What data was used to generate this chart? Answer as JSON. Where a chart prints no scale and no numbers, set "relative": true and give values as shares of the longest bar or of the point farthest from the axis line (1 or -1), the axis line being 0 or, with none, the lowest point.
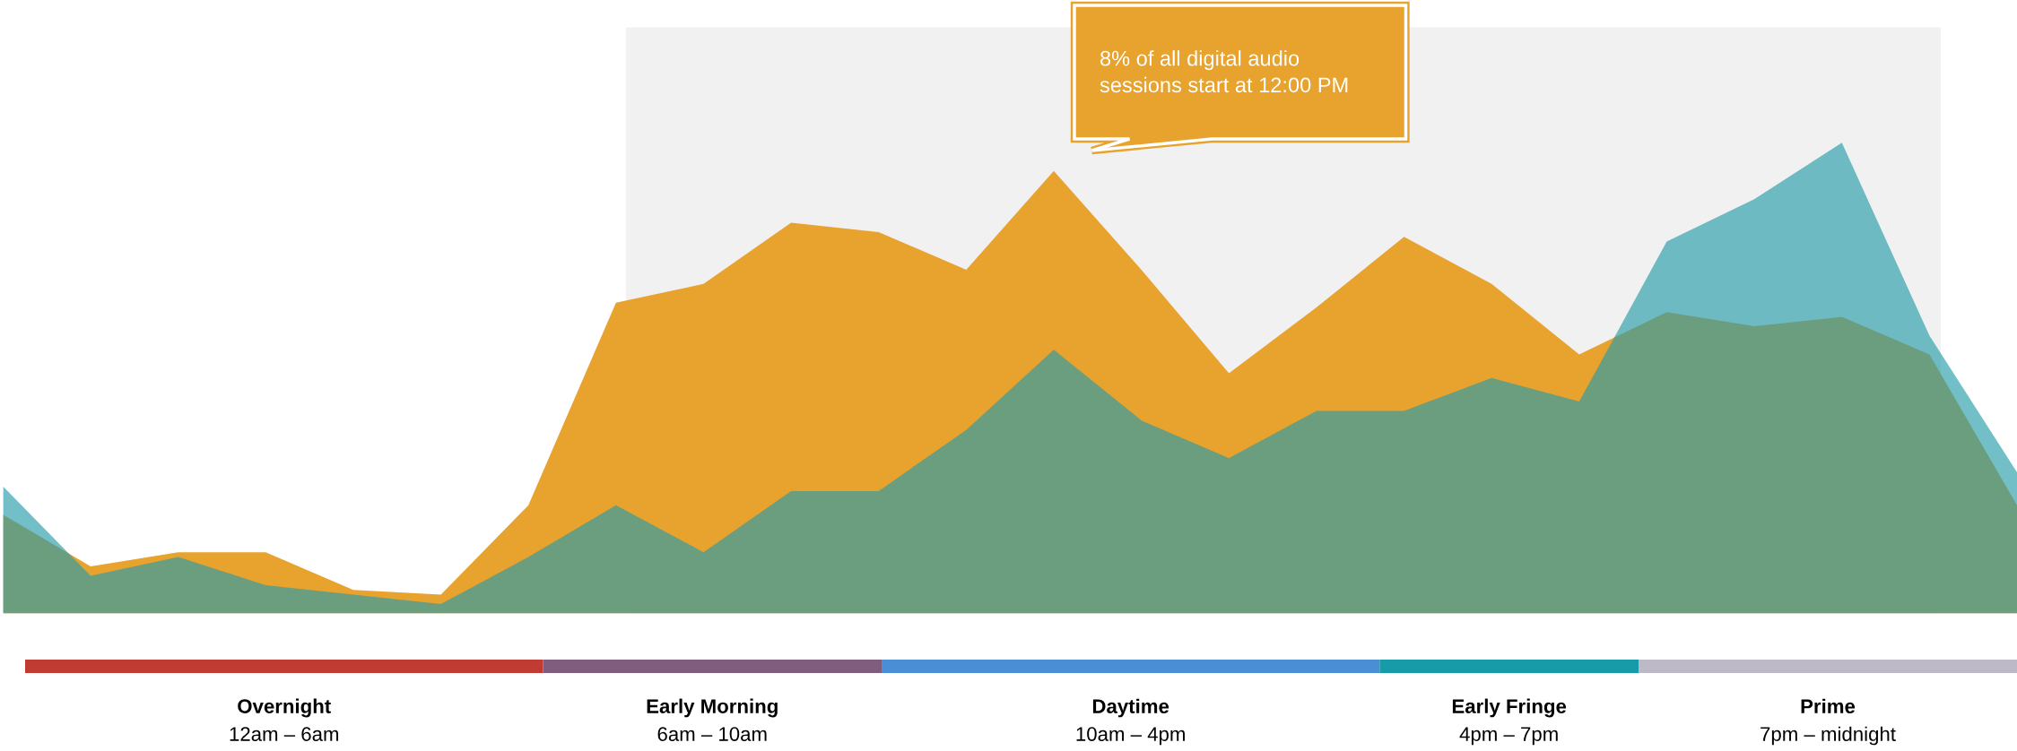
{
  "chart_data": [
    {
      "type": "area",
      "relative": true,
      "categories": [
        null,
        null,
        null,
        null,
        null,
        null,
        null,
        null,
        null,
        null,
        null,
        null,
        null,
        null,
        null,
        null,
        null,
        null,
        null,
        null,
        null,
        null,
        null,
        null
      ],
      "series": [
        {
          "color": "#e8a22e",
          "values": [
            0.21,
            0.1,
            0.13,
            0.13,
            0.05,
            0.04,
            0.23,
            0.66,
            0.7,
            0.83,
            0.81,
            0.73,
            0.94,
            0.73,
            0.51,
            0.65,
            0.8,
            0.7,
            0.55,
            0.64,
            0.61,
            0.63,
            0.55,
            0.23
          ]
        },
        {
          "color": "#269daa",
          "values": [
            0.27,
            0.08,
            0.12,
            0.06,
            0.04,
            0.02,
            0.12,
            0.23,
            0.13,
            0.26,
            0.26,
            0.39,
            0.56,
            0.41,
            0.33,
            0.43,
            0.43,
            0.5,
            0.45,
            0.79,
            0.88,
            1.0,
            0.59,
            0.3
          ]
        }
      ],
      "annotations": [
        "8% of all digital audio\nsessions start at 12:00 PM"
      ]
    },
    {
      "type": "bar",
      "orientation": "horizontal",
      "stacked": true,
      "relative": true,
      "categories": [
        null
      ],
      "series": [
        {
          "name": "Overnight\n12am – 6am",
          "color": "#c03c33",
          "values": [
            0.26
          ]
        },
        {
          "name": "Early Morning\n6am – 10am",
          "color": "#805c7e",
          "values": [
            0.17
          ]
        },
        {
          "name": "Daytime\n10am – 4pm",
          "color": "#4a8ed6",
          "values": [
            0.25
          ]
        },
        {
          "name": "Early Fringe\n4pm – 7pm",
          "color": "#189ba8",
          "values": [
            0.13
          ]
        },
        {
          "name": "Prime\n7pm – midnight",
          "color": "#bdb9c7",
          "values": [
            0.19
          ]
        }
      ]
    }
  ]
}
